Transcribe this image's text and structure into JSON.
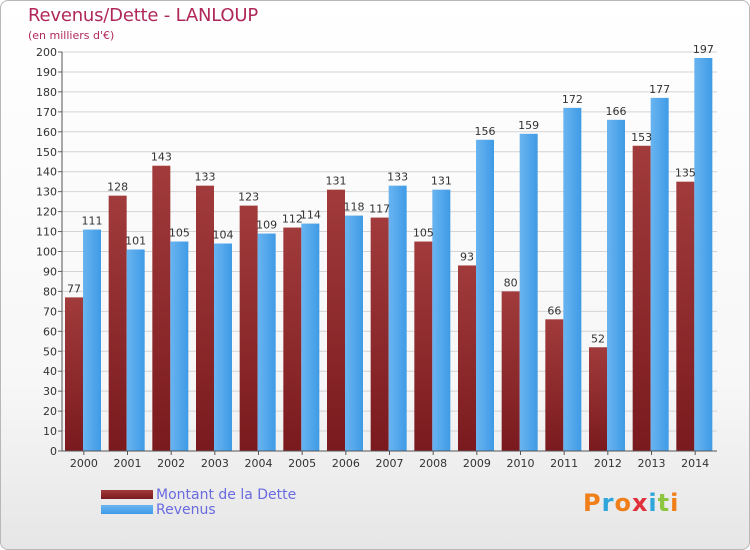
{
  "title": "Revenus/Dette - LANLOUP",
  "subtitle": "(en milliers d'€)",
  "brand": {
    "text": "Proxiti",
    "letter_colors": [
      "#f07f1a",
      "#2ea6dc",
      "#f07f1a",
      "#e0303a",
      "#2ea6dc",
      "#8cc63f",
      "#f07f1a"
    ]
  },
  "colors": {
    "debt": "#7a1a1e",
    "debt_light": "#a13b3c",
    "revenue": "#3f9be6",
    "revenue_light": "#69b4f0",
    "title": "#b0285a",
    "legend_text": "#6a6ae0"
  },
  "chart_data": {
    "type": "bar",
    "title": "Revenus/Dette - LANLOUP",
    "subtitle": "(en milliers d'€)",
    "categories": [
      "2000",
      "2001",
      "2002",
      "2003",
      "2004",
      "2005",
      "2006",
      "2007",
      "2008",
      "2009",
      "2010",
      "2011",
      "2012",
      "2013",
      "2014"
    ],
    "series": [
      {
        "name": "Montant de la Dette",
        "values": [
          77,
          128,
          143,
          133,
          123,
          112,
          131,
          117,
          105,
          93,
          80,
          66,
          52,
          153,
          135
        ]
      },
      {
        "name": "Revenus",
        "values": [
          111,
          101,
          105,
          104,
          109,
          114,
          118,
          133,
          131,
          156,
          159,
          172,
          166,
          177,
          197
        ]
      }
    ],
    "ylim": [
      0,
      200
    ],
    "ytick_step": 10,
    "grid": true,
    "legend_position": "bottom-left",
    "data_labels": true
  }
}
